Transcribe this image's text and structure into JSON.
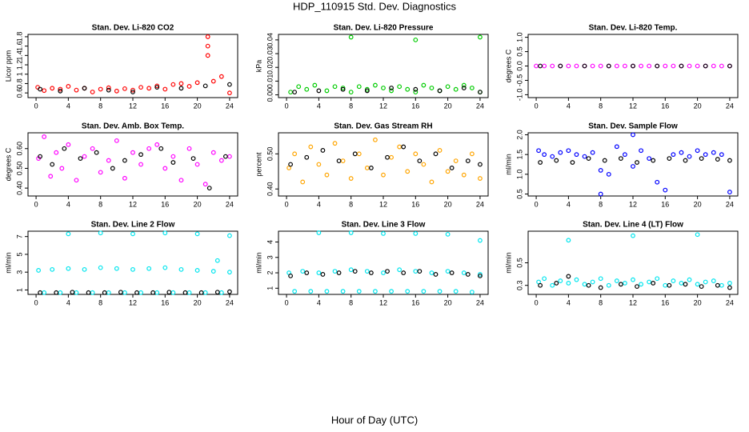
{
  "title": "HDP_110915  Std. Dev. Diagnostics",
  "xlabel": "Hour of Day (UTC)",
  "chart_data": [
    {
      "type": "scatter",
      "title": "Stan. Dev. Li-820 CO2",
      "ylabel": "Licor ppm",
      "xlim": [
        -1,
        25
      ],
      "xticks": [
        0,
        4,
        8,
        12,
        16,
        20,
        24
      ],
      "ylim": [
        0.5,
        1.85
      ],
      "yticks": [
        0.6,
        0.8,
        1.0,
        1.2,
        1.4,
        1.6,
        1.8
      ],
      "series": [
        {
          "color": "#ff0000",
          "x": [
            0.2,
            1,
            2,
            3,
            4,
            5,
            6,
            7,
            8,
            9,
            10,
            11,
            12,
            13,
            14,
            15,
            16,
            17,
            18,
            19,
            20,
            21.3,
            21.3,
            21.3,
            22,
            23,
            24
          ],
          "values": [
            0.72,
            0.65,
            0.7,
            0.68,
            0.74,
            0.66,
            0.7,
            0.62,
            0.68,
            0.71,
            0.64,
            0.69,
            0.66,
            0.72,
            0.7,
            0.75,
            0.68,
            0.78,
            0.8,
            0.74,
            0.82,
            1.8,
            1.6,
            1.4,
            0.85,
            0.95,
            0.6
          ]
        },
        {
          "color": "#000000",
          "x": [
            0.5,
            3,
            6,
            9,
            12,
            15,
            18,
            21,
            24
          ],
          "values": [
            0.68,
            0.64,
            0.7,
            0.66,
            0.62,
            0.72,
            0.7,
            0.75,
            0.78
          ]
        }
      ]
    },
    {
      "type": "scatter",
      "title": "Stan. Dev. Li-820 Pressure",
      "ylabel": "kPa",
      "xlim": [
        -1,
        25
      ],
      "xticks": [
        0,
        4,
        8,
        12,
        16,
        20,
        24
      ],
      "ylim": [
        -0.002,
        0.044
      ],
      "yticks": [
        {
          "value": 0,
          "label": "0.00"
        },
        0.01,
        0.02,
        0.03,
        0.04
      ],
      "series": [
        {
          "color": "#00cc00",
          "x": [
            0.5,
            1.5,
            2.5,
            3.5,
            5,
            6,
            7,
            8,
            9,
            10,
            11,
            12,
            13,
            14,
            15,
            16,
            17,
            18,
            19,
            20,
            21,
            22,
            23,
            24,
            8,
            16,
            24
          ],
          "values": [
            0.002,
            0.006,
            0.004,
            0.007,
            0.003,
            0.006,
            0.005,
            0.002,
            0.006,
            0.004,
            0.007,
            0.005,
            0.003,
            0.006,
            0.004,
            0.002,
            0.007,
            0.005,
            0.003,
            0.006,
            0.004,
            0.007,
            0.005,
            0.002,
            0.042,
            0.04,
            0.042
          ]
        },
        {
          "color": "#000000",
          "x": [
            1,
            4,
            7,
            10,
            13,
            16,
            19,
            22,
            24
          ],
          "values": [
            0.002,
            0.003,
            0.004,
            0.003,
            0.005,
            0.004,
            0.003,
            0.005,
            0.002
          ]
        }
      ]
    },
    {
      "type": "scatter",
      "title": "Stan. Dev. Li-820 Temp.",
      "ylabel": "degrees C",
      "xlim": [
        -1,
        25
      ],
      "xticks": [
        0,
        4,
        8,
        12,
        16,
        20,
        24
      ],
      "ylim": [
        -1.1,
        1.1
      ],
      "yticks": [
        {
          "value": -1,
          "label": "-1.0"
        },
        -0.5,
        {
          "value": 0,
          "label": "0.0"
        },
        0.5,
        {
          "value": 1,
          "label": "1.0"
        }
      ],
      "series": [
        {
          "color": "#ff00ff",
          "x": [
            0,
            1,
            2,
            3,
            4,
            5,
            6,
            7,
            8,
            9,
            10,
            11,
            12,
            13,
            14,
            15,
            16,
            17,
            18,
            19,
            20,
            21,
            22,
            23,
            24
          ],
          "values": [
            0,
            0,
            0,
            0,
            0,
            0,
            0,
            0,
            0,
            0,
            0,
            0,
            0,
            0,
            0,
            0,
            0,
            0,
            0,
            0,
            0,
            0,
            0,
            0,
            0
          ]
        },
        {
          "color": "#000000",
          "x": [
            0.5,
            3,
            6,
            9,
            12,
            15,
            18,
            21,
            24
          ],
          "values": [
            0,
            0,
            0,
            0,
            0,
            0,
            0,
            0,
            0
          ]
        }
      ]
    },
    {
      "type": "scatter",
      "title": "Stan. Dev. Amb. Box Temp.",
      "ylabel": "degrees C",
      "xlim": [
        -1,
        25
      ],
      "xticks": [
        0,
        4,
        8,
        12,
        16,
        20,
        24
      ],
      "ylim": [
        0.36,
        0.68
      ],
      "yticks": [
        {
          "value": 0.4,
          "label": "0.40"
        },
        {
          "value": 0.5,
          "label": "0.50"
        },
        {
          "value": 0.6,
          "label": "0.60"
        }
      ],
      "series": [
        {
          "color": "#ff00ff",
          "x": [
            0.3,
            1,
            1.8,
            2.5,
            3.2,
            4,
            5,
            6,
            7,
            8,
            9,
            10,
            11,
            12,
            13,
            14,
            15,
            16,
            17,
            18,
            19,
            20,
            21,
            22,
            23,
            24
          ],
          "values": [
            0.55,
            0.66,
            0.46,
            0.58,
            0.5,
            0.62,
            0.44,
            0.56,
            0.6,
            0.48,
            0.54,
            0.64,
            0.45,
            0.58,
            0.52,
            0.6,
            0.62,
            0.5,
            0.56,
            0.44,
            0.6,
            0.52,
            0.42,
            0.58,
            0.54,
            0.56
          ]
        },
        {
          "color": "#000000",
          "x": [
            0.5,
            2,
            3.5,
            5.5,
            7.5,
            9.5,
            11,
            13,
            15.5,
            17,
            19.5,
            21.5,
            23.5
          ],
          "values": [
            0.56,
            0.52,
            0.6,
            0.55,
            0.58,
            0.5,
            0.54,
            0.57,
            0.6,
            0.53,
            0.55,
            0.4,
            0.56
          ]
        }
      ]
    },
    {
      "type": "scatter",
      "title": "Stan. Dev. Gas Stream RH",
      "ylabel": "percent",
      "xlim": [
        -1,
        25
      ],
      "xticks": [
        0,
        4,
        8,
        12,
        16,
        20,
        24
      ],
      "ylim": [
        0.38,
        0.56
      ],
      "yticks": [
        {
          "value": 0.4,
          "label": "0.40"
        },
        {
          "value": 0.5,
          "label": "0.50"
        }
      ],
      "series": [
        {
          "color": "#ffa500",
          "x": [
            0.3,
            1,
            2,
            3,
            4,
            5,
            6,
            7,
            8,
            9,
            10,
            11,
            12,
            13,
            14,
            15,
            16,
            17,
            18,
            19,
            20,
            21,
            22,
            23,
            24
          ],
          "values": [
            0.46,
            0.5,
            0.42,
            0.52,
            0.47,
            0.44,
            0.53,
            0.48,
            0.43,
            0.5,
            0.46,
            0.54,
            0.44,
            0.49,
            0.52,
            0.45,
            0.5,
            0.47,
            0.42,
            0.51,
            0.45,
            0.48,
            0.44,
            0.5,
            0.43
          ]
        },
        {
          "color": "#000000",
          "x": [
            0.5,
            2.5,
            4.5,
            6.5,
            8.5,
            10.5,
            12.5,
            14.5,
            16.5,
            18.5,
            20.5,
            22.5,
            24
          ],
          "values": [
            0.47,
            0.49,
            0.51,
            0.48,
            0.5,
            0.46,
            0.49,
            0.52,
            0.48,
            0.5,
            0.46,
            0.48,
            0.47
          ]
        }
      ]
    },
    {
      "type": "scatter",
      "title": "Stan. Dev. Sample Flow",
      "ylabel": "ml/min",
      "xlim": [
        -1,
        25
      ],
      "xticks": [
        0,
        4,
        8,
        12,
        16,
        20,
        24
      ],
      "ylim": [
        0.45,
        2.05
      ],
      "yticks": [
        0.5,
        {
          "value": 1,
          "label": "1.0"
        },
        1.5,
        {
          "value": 2,
          "label": "2.0"
        }
      ],
      "series": [
        {
          "color": "#0000ff",
          "x": [
            0.3,
            1,
            2,
            3,
            4,
            5,
            6,
            7,
            8,
            8,
            9,
            10,
            11,
            12,
            12,
            13,
            14,
            15,
            16,
            17,
            18,
            19,
            20,
            21,
            22,
            23,
            24
          ],
          "values": [
            1.6,
            1.5,
            1.45,
            1.55,
            1.6,
            1.5,
            1.45,
            1.55,
            1.1,
            0.5,
            1.0,
            1.7,
            1.5,
            2.0,
            1.2,
            1.6,
            1.4,
            0.8,
            0.6,
            1.5,
            1.55,
            1.45,
            1.6,
            1.5,
            1.55,
            1.5,
            0.55
          ]
        },
        {
          "color": "#000000",
          "x": [
            0.5,
            2.5,
            4.5,
            6.5,
            8.5,
            10.5,
            12.5,
            14.5,
            16.5,
            18.5,
            20.5,
            22.5,
            24
          ],
          "values": [
            1.3,
            1.35,
            1.3,
            1.4,
            1.35,
            1.4,
            1.3,
            1.35,
            1.4,
            1.35,
            1.4,
            1.38,
            1.35
          ]
        }
      ]
    },
    {
      "type": "scatter",
      "title": "Stan. Dev. Line 2 Flow",
      "ylabel": "ml/min",
      "xlim": [
        -1,
        25
      ],
      "xticks": [
        0,
        4,
        8,
        12,
        16,
        20,
        24
      ],
      "ylim": [
        0.5,
        7.6
      ],
      "yticks": [
        1,
        3,
        5,
        7
      ],
      "series": [
        {
          "color": "#00e5ee",
          "x": [
            0.3,
            2,
            4,
            6,
            8,
            10,
            12,
            14,
            16,
            18,
            20,
            22,
            24,
            1,
            3,
            5,
            7,
            9,
            11,
            13,
            15,
            17,
            19,
            21,
            23,
            4,
            8,
            12,
            16,
            20,
            22.5,
            24
          ],
          "values": [
            3.2,
            3.3,
            3.4,
            3.3,
            3.5,
            3.4,
            3.3,
            3.4,
            3.5,
            3.3,
            3.2,
            3.1,
            3.0,
            0.7,
            0.7,
            0.7,
            0.7,
            0.7,
            0.7,
            0.7,
            0.7,
            0.7,
            0.7,
            0.7,
            0.7,
            7.3,
            7.4,
            7.3,
            7.4,
            7.3,
            4.3,
            7.1
          ]
        },
        {
          "color": "#000000",
          "x": [
            0.5,
            2.5,
            4.5,
            6.5,
            8.5,
            10.5,
            12.5,
            14.5,
            16.5,
            18.5,
            20.5,
            22.5,
            24
          ],
          "values": [
            0.7,
            0.7,
            0.75,
            0.7,
            0.7,
            0.75,
            0.7,
            0.7,
            0.75,
            0.7,
            0.7,
            0.75,
            0.8
          ]
        }
      ]
    },
    {
      "type": "scatter",
      "title": "Stan. Dev. Line 3 Flow",
      "ylabel": "ml/min",
      "xlim": [
        -1,
        25
      ],
      "xticks": [
        0,
        4,
        8,
        12,
        16,
        20,
        24
      ],
      "ylim": [
        0.6,
        4.7
      ],
      "yticks": [
        1,
        2,
        3,
        4
      ],
      "series": [
        {
          "color": "#00e5ee",
          "x": [
            0.3,
            2,
            4,
            6,
            8,
            10,
            12,
            14,
            16,
            18,
            20,
            22,
            24,
            1,
            3,
            5,
            7,
            9,
            11,
            13,
            15,
            17,
            19,
            21,
            23,
            4,
            8,
            12,
            16,
            20,
            24
          ],
          "values": [
            2.0,
            2.1,
            2.0,
            2.1,
            2.2,
            2.1,
            2.0,
            2.2,
            2.1,
            2.0,
            2.1,
            2.0,
            1.9,
            0.8,
            0.8,
            0.8,
            0.8,
            0.8,
            0.8,
            0.8,
            0.8,
            0.8,
            0.8,
            0.8,
            0.75,
            4.6,
            4.6,
            4.55,
            4.55,
            4.5,
            4.1
          ]
        },
        {
          "color": "#000000",
          "x": [
            0.5,
            2.5,
            4.5,
            6.5,
            8.5,
            10.5,
            12.5,
            14.5,
            16.5,
            18.5,
            20.5,
            22.5,
            24
          ],
          "values": [
            1.8,
            2.0,
            1.9,
            2.0,
            2.1,
            2.0,
            2.1,
            2.0,
            2.1,
            1.9,
            2.0,
            1.9,
            1.8
          ]
        }
      ]
    },
    {
      "type": "scatter",
      "title": "Stan. Dev. Line 4 (LT) Flow",
      "ylabel": "ml/min",
      "xlim": [
        -1,
        25
      ],
      "xticks": [
        0,
        4,
        8,
        12,
        16,
        20,
        24
      ],
      "ylim": [
        0.22,
        0.78
      ],
      "yticks": [
        0.3,
        0.5
      ],
      "series": [
        {
          "color": "#00e5ee",
          "x": [
            0.3,
            1,
            2,
            3,
            4,
            5,
            6,
            7,
            8,
            9,
            10,
            11,
            12,
            13,
            14,
            15,
            16,
            17,
            18,
            19,
            20,
            21,
            22,
            23,
            24,
            4,
            12,
            20
          ],
          "values": [
            0.33,
            0.36,
            0.3,
            0.34,
            0.32,
            0.35,
            0.31,
            0.33,
            0.36,
            0.3,
            0.34,
            0.32,
            0.35,
            0.31,
            0.33,
            0.36,
            0.3,
            0.34,
            0.32,
            0.35,
            0.31,
            0.33,
            0.34,
            0.3,
            0.32,
            0.7,
            0.74,
            0.75
          ]
        },
        {
          "color": "#000000",
          "x": [
            0.5,
            2.5,
            4,
            6.5,
            8,
            10.5,
            12.5,
            14.5,
            16.5,
            18.5,
            20.5,
            22.5,
            24
          ],
          "values": [
            0.3,
            0.32,
            0.38,
            0.3,
            0.28,
            0.31,
            0.29,
            0.32,
            0.3,
            0.31,
            0.29,
            0.3,
            0.28
          ]
        }
      ]
    }
  ]
}
